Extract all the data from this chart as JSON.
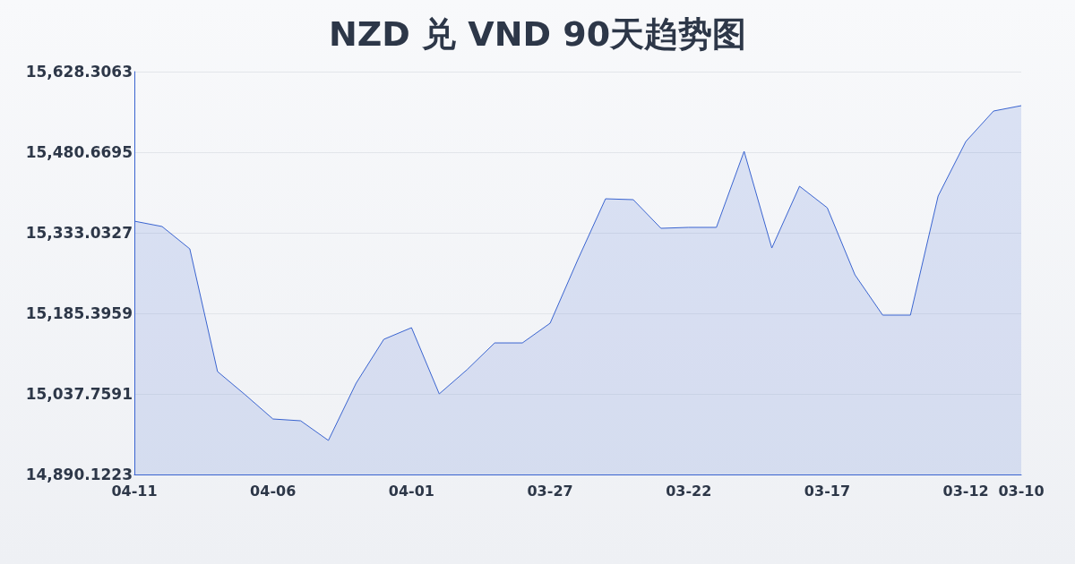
{
  "chart_data": {
    "type": "area",
    "title": "NZD 兑 VND 90天趋势图",
    "categories": [
      "04-11",
      null,
      null,
      null,
      null,
      "04-06",
      null,
      null,
      null,
      null,
      "04-01",
      null,
      null,
      null,
      null,
      "03-27",
      null,
      null,
      null,
      null,
      "03-22",
      null,
      null,
      null,
      null,
      "03-17",
      null,
      null,
      null,
      null,
      "03-12",
      null,
      "03-10"
    ],
    "series": [
      {
        "color": "#3a64d0",
        "values": [
          15354.3,
          15344.5,
          15303.5,
          15078.7,
          15036.1,
          14991.8,
          14988.5,
          14952.5,
          15057.4,
          15137.8,
          15159.1,
          15037.8,
          15082.0,
          15131.2,
          15131.2,
          15167.3,
          15283.8,
          15395.3,
          15393.7,
          15341.2,
          15342.9,
          15342.9,
          15482.3,
          15305.1,
          15418.3,
          15378.9,
          15255.9,
          15182.1,
          15182.1,
          15400.3,
          15500.3,
          15556.1,
          15565.9
        ]
      }
    ],
    "ylim": [
      14890.1223,
      15628.3063
    ],
    "yticks": [
      {
        "value": 14890.1223,
        "label": "14,890.1223"
      },
      {
        "value": 15037.7591,
        "label": "15,037.7591"
      },
      {
        "value": 15185.3959,
        "label": "15,185.3959"
      },
      {
        "value": 15333.0327,
        "label": "15,333.0327"
      },
      {
        "value": 15480.6695,
        "label": "15,480.6695"
      },
      {
        "value": 15628.3063,
        "label": "15,628.3063"
      }
    ],
    "grid": "y",
    "marker": "none",
    "line_style": "solid"
  }
}
